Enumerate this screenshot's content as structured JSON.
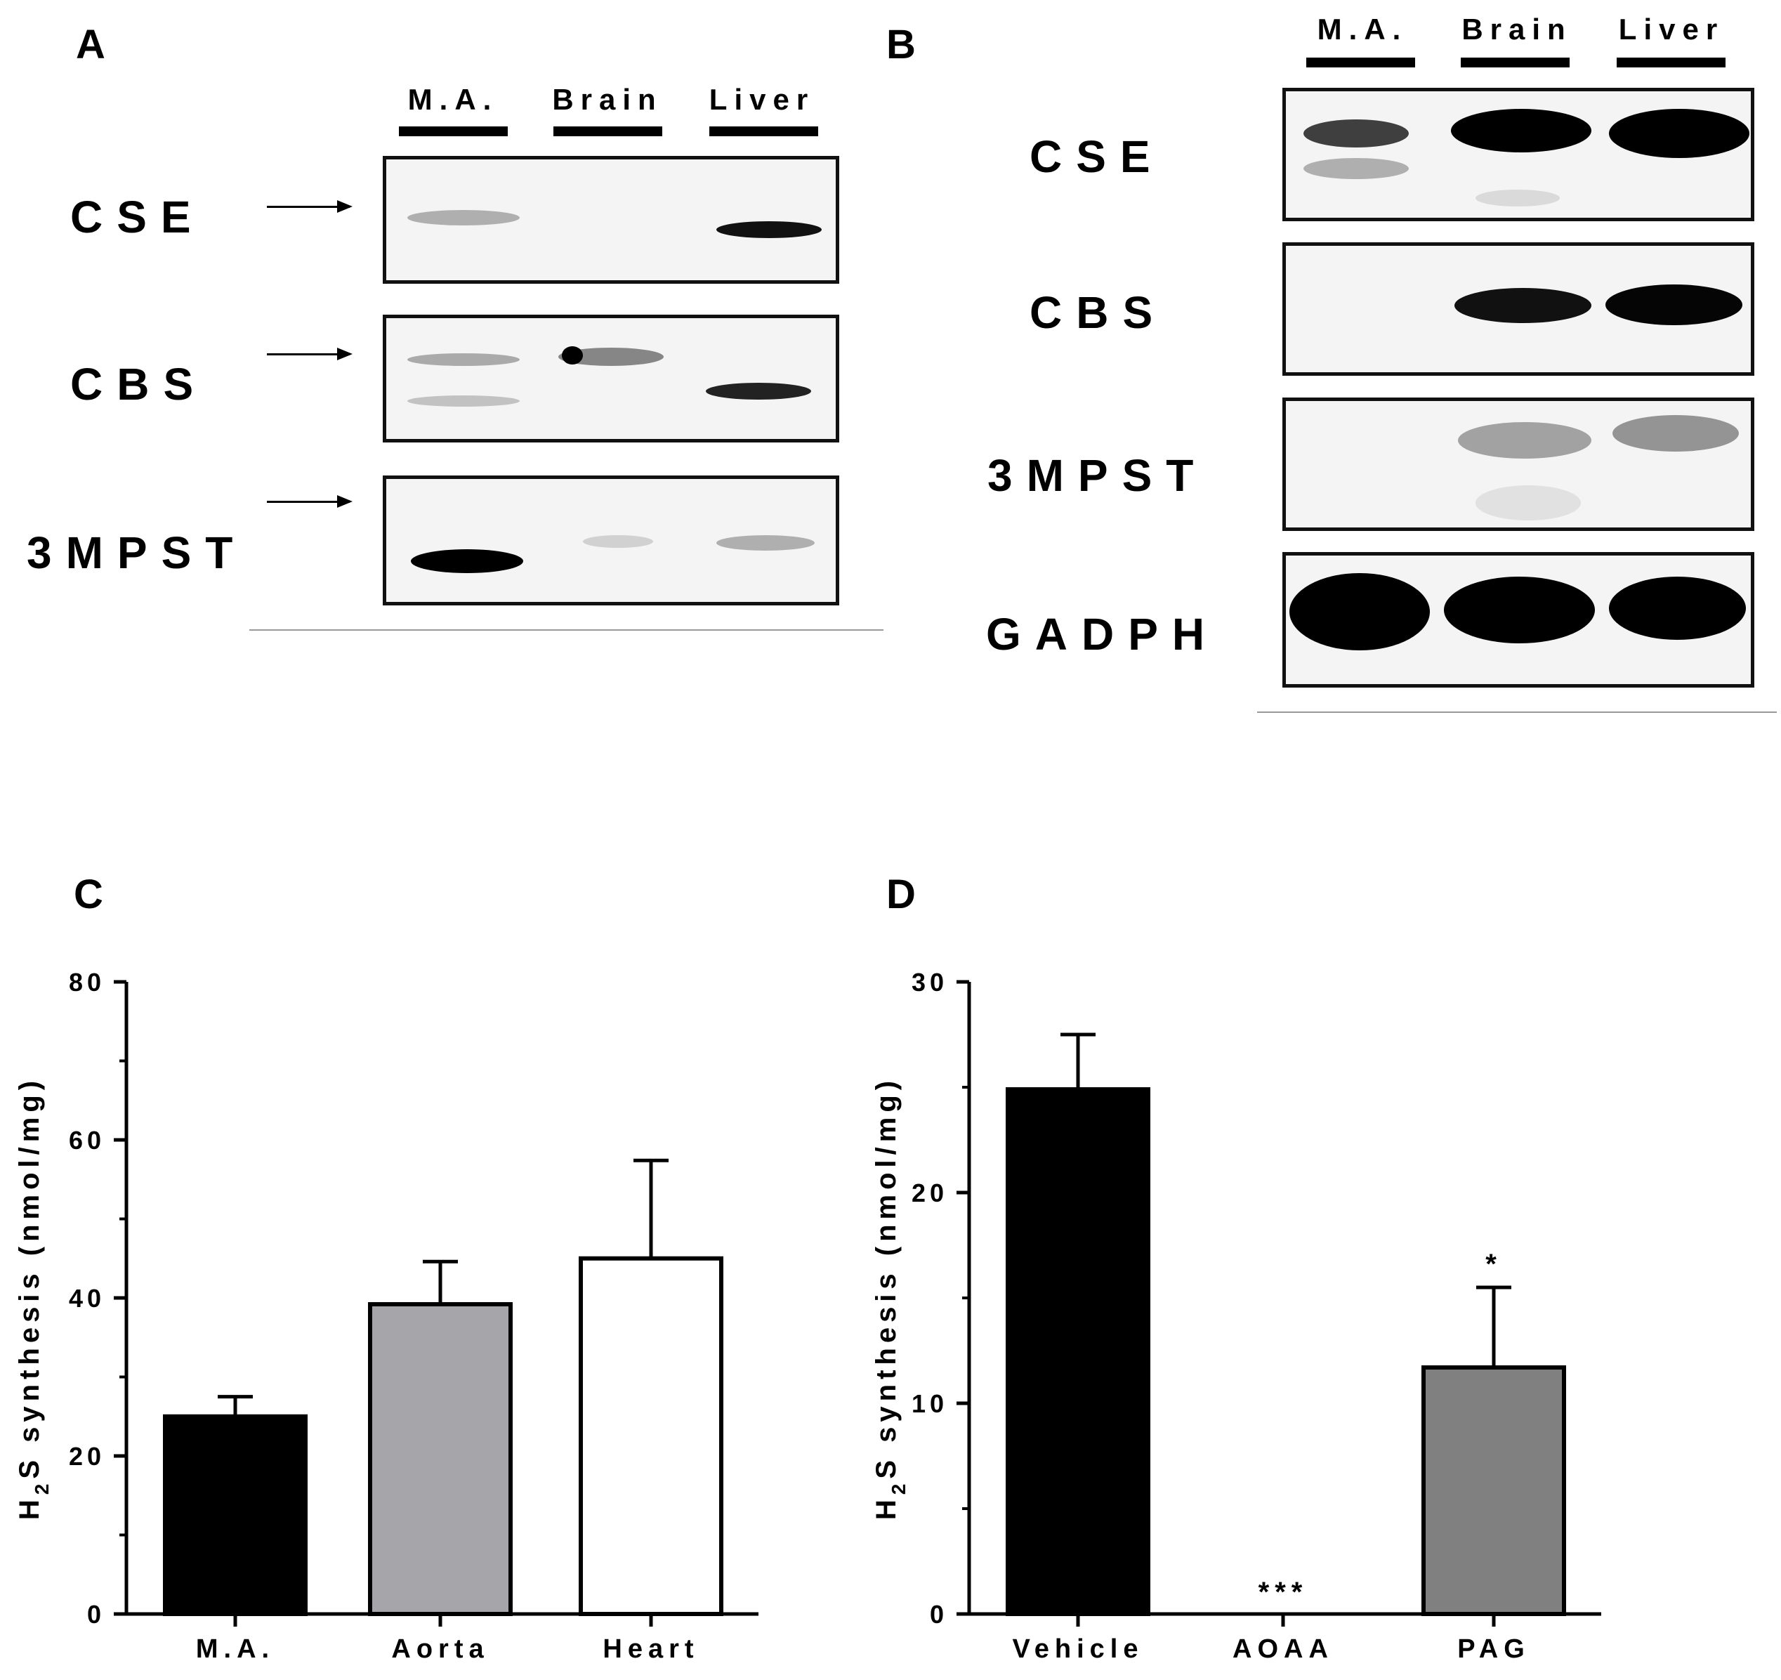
{
  "panelA": {
    "letter": "A",
    "lanes": [
      "M.A.",
      "Brain",
      "Liver"
    ],
    "rows": [
      "CSE",
      "CBS",
      "3MPST"
    ]
  },
  "panelB": {
    "letter": "B",
    "lanes": [
      "M.A.",
      "Brain",
      "Liver"
    ],
    "rows": [
      "CSE",
      "CBS",
      "3MPST",
      "GADPH"
    ]
  },
  "chart_data": [
    {
      "panel": "C",
      "type": "bar",
      "categories": [
        "M.A.",
        "Aorta",
        "Heart"
      ],
      "values": [
        25,
        39.2,
        45
      ],
      "errors": [
        2.5,
        5.4,
        12.4
      ],
      "colors": [
        "#000000",
        "#a6a6aa",
        "#ffffff"
      ],
      "ylabel_main": "H",
      "ylabel_sub": "2",
      "ylabel_rest": "S synthesis (nmol/mg)",
      "ylim": [
        0,
        80
      ],
      "yticks": [
        0,
        20,
        40,
        60,
        80
      ],
      "annotations": [
        "",
        "",
        ""
      ]
    },
    {
      "panel": "D",
      "type": "bar",
      "categories": [
        "Vehicle",
        "AOAA",
        "PAG"
      ],
      "values": [
        24.9,
        0,
        11.7
      ],
      "errors": [
        2.6,
        0,
        3.8
      ],
      "colors": [
        "#000000",
        "#000000",
        "#808080"
      ],
      "ylabel_main": "H",
      "ylabel_sub": "2",
      "ylabel_rest": "S synthesis (nmol/mg)",
      "ylim": [
        0,
        30
      ],
      "yticks": [
        0,
        10,
        20,
        30
      ],
      "annotations": [
        "",
        "***",
        "*"
      ]
    }
  ]
}
